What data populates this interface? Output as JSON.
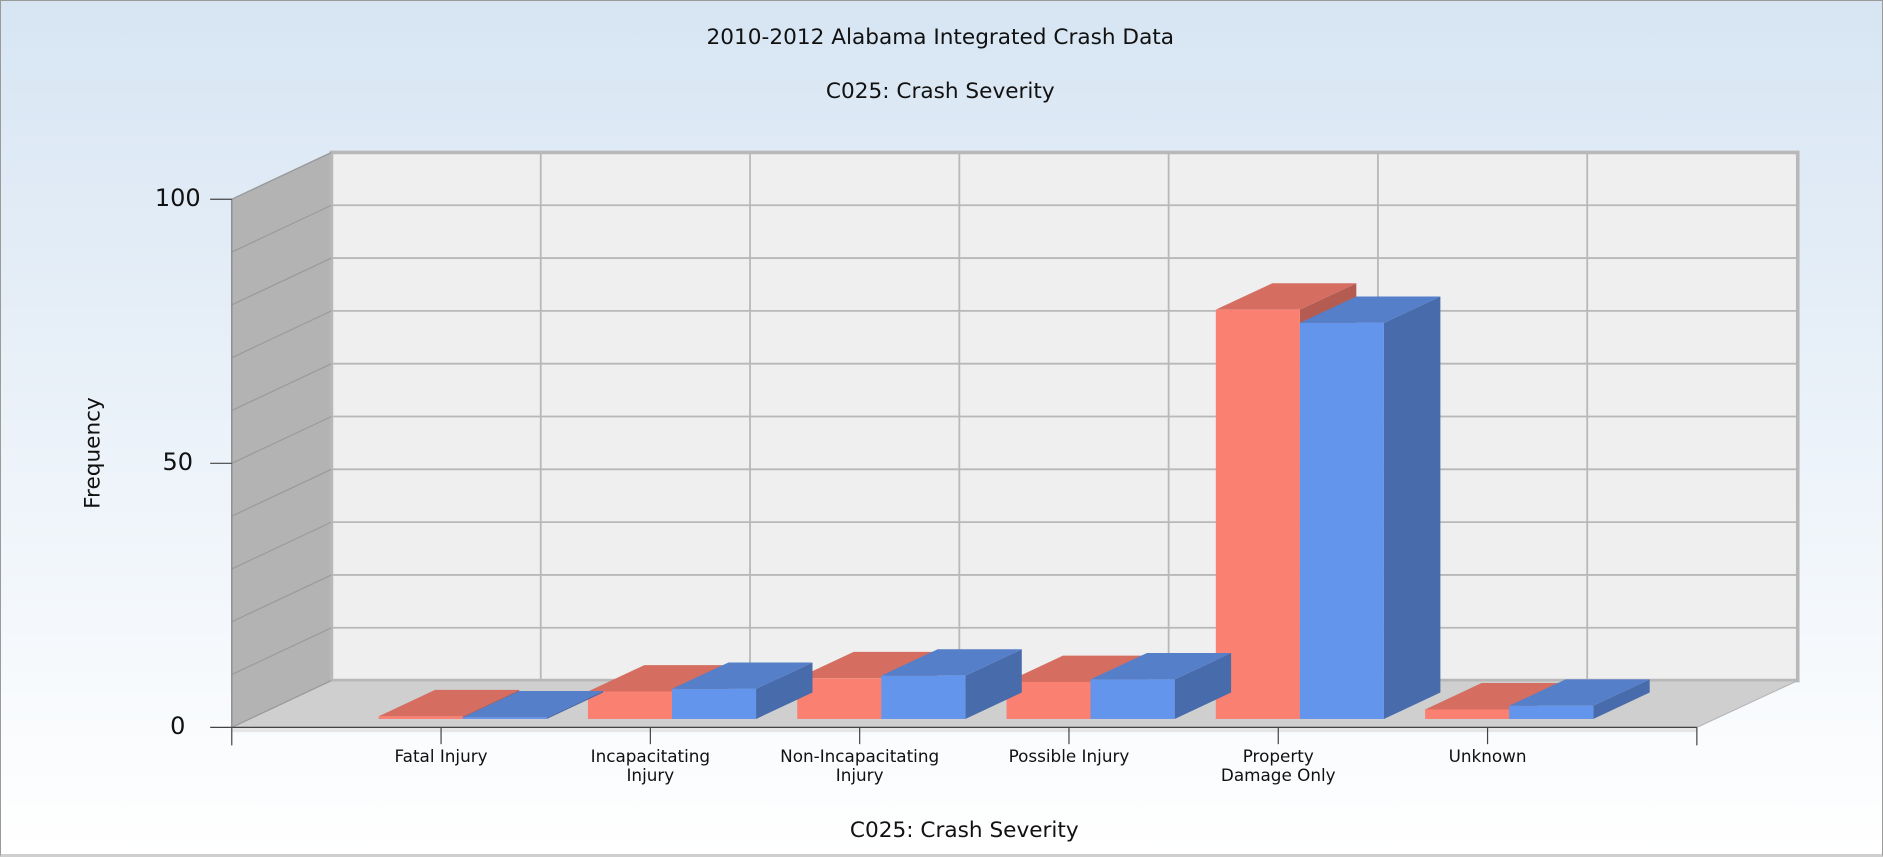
{
  "chart_data": {
    "type": "bar3d",
    "title": "2010-2012 Alabama Integrated Crash Data",
    "subtitle": "C025: Crash Severity",
    "x_label": "C025: Crash Severity",
    "y_label": "Frequency",
    "categories": [
      "Fatal Injury",
      "Incapacitating\nInjury",
      "Non-Incapacitating\nInjury",
      "Possible Injury",
      "Property\nDamage Only",
      "Unknown"
    ],
    "series": [
      {
        "color": "#fa8072",
        "values": [
          0.5,
          5.2,
          7.7,
          7.0,
          77.5,
          1.8
        ]
      },
      {
        "color": "#6495ed",
        "values": [
          0.3,
          5.7,
          8.2,
          7.5,
          75.0,
          2.5
        ]
      }
    ],
    "ylim": [
      0,
      100
    ],
    "yticks": [
      0,
      50,
      100
    ],
    "minor_yticks": [
      10,
      20,
      30,
      40,
      60,
      70,
      80,
      90
    ],
    "grid": true
  }
}
